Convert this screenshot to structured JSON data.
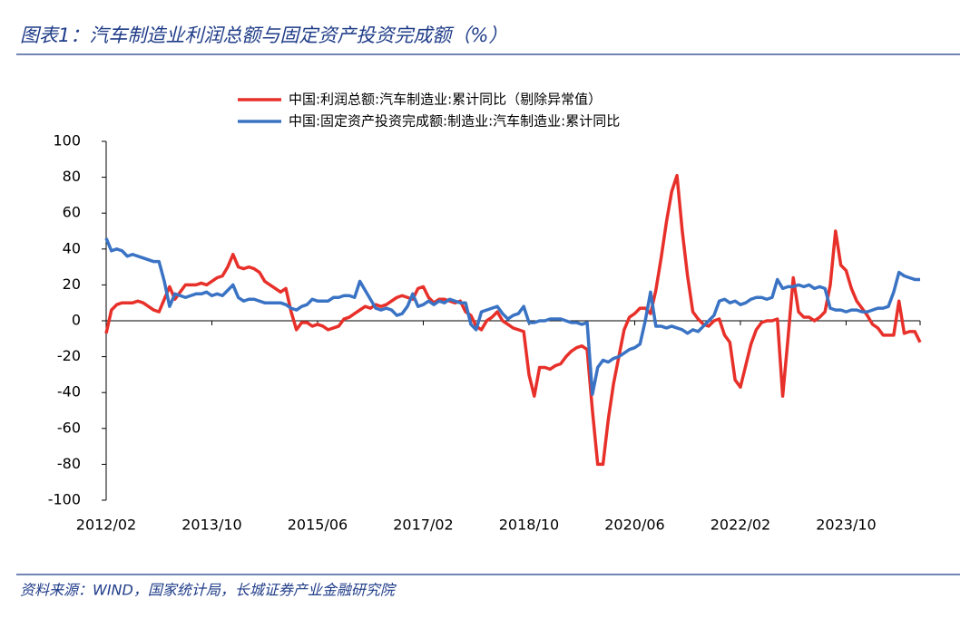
{
  "chart_data": {
    "type": "line",
    "title": "图表1：汽车制造业利润总额与固定资产投资完成额（%）",
    "source": "资料来源：WIND，国家统计局，长城证券产业金融研究院",
    "categories": [
      "2012/02",
      null,
      null,
      null,
      null,
      null,
      null,
      null,
      null,
      null,
      null,
      null,
      null,
      null,
      null,
      null,
      null,
      null,
      null,
      null,
      "2013/10",
      null,
      null,
      null,
      null,
      null,
      null,
      null,
      null,
      null,
      null,
      null,
      null,
      null,
      null,
      null,
      null,
      null,
      null,
      null,
      "2015/06",
      null,
      null,
      null,
      null,
      null,
      null,
      null,
      null,
      null,
      null,
      null,
      null,
      null,
      null,
      null,
      null,
      null,
      null,
      null,
      "2017/02",
      null,
      null,
      null,
      null,
      null,
      null,
      null,
      null,
      null,
      null,
      null,
      null,
      null,
      null,
      null,
      null,
      null,
      null,
      null,
      "2018/10",
      null,
      null,
      null,
      null,
      null,
      null,
      null,
      null,
      null,
      null,
      null,
      null,
      null,
      null,
      null,
      null,
      null,
      null,
      null,
      "2020/06",
      null,
      null,
      null,
      null,
      null,
      null,
      null,
      null,
      null,
      null,
      null,
      null,
      null,
      null,
      null,
      null,
      null,
      null,
      null,
      "2022/02",
      null,
      null,
      null,
      null,
      null,
      null,
      null,
      null,
      null,
      null,
      null,
      null,
      null,
      null,
      null,
      null,
      null,
      null,
      null,
      "2023/10",
      null,
      null,
      null,
      null,
      null,
      null,
      null,
      null,
      null,
      null,
      null,
      null,
      null,
      null
    ],
    "series": [
      {
        "name": "中国:利润总额:汽车制造业:累计同比（剔除异常值）",
        "color": "#e8302a",
        "values": [
          -7,
          6,
          9,
          10,
          10,
          10,
          11,
          10,
          8,
          6,
          5,
          12,
          19,
          12,
          16,
          20,
          20,
          20,
          21,
          20,
          22,
          24,
          25,
          30,
          37,
          30,
          29,
          30,
          29,
          27,
          22,
          20,
          18,
          16,
          18,
          5,
          -5,
          -1,
          -1,
          -3,
          -2,
          -3,
          -5,
          -4,
          -3,
          1,
          2,
          4,
          6,
          8,
          7,
          9,
          8,
          9,
          11,
          13,
          14,
          13,
          12,
          18,
          19,
          13,
          10,
          12,
          12,
          11,
          10,
          11,
          5,
          3,
          -3,
          -5,
          0,
          2,
          5,
          0,
          -2,
          -4,
          -5,
          -6,
          -30,
          -42,
          -26,
          -26,
          -27,
          -25,
          -24,
          -20,
          -17,
          -15,
          -14,
          -16,
          -50,
          -80,
          -80,
          -55,
          -35,
          -20,
          -5,
          2,
          4,
          7,
          7,
          4,
          17,
          35,
          55,
          72,
          81,
          50,
          25,
          5,
          1,
          -2,
          -3,
          0,
          1,
          -8,
          -12,
          -33,
          -37,
          -25,
          -13,
          -5,
          -1,
          0,
          0,
          1,
          -42,
          -10,
          24,
          5,
          2,
          2,
          0,
          2,
          5,
          20,
          50,
          31,
          28,
          18,
          11,
          7,
          3,
          -2,
          -4,
          -8,
          -8,
          -8,
          11,
          -7,
          -6,
          -6,
          -12
        ]
      },
      {
        "name": "中国:固定资产投资完成额:制造业:汽车制造业:累计同比",
        "color": "#3a73c4",
        "values": [
          46,
          39,
          40,
          39,
          36,
          37,
          36,
          35,
          34,
          33,
          33,
          22,
          8,
          15,
          14,
          13,
          14,
          15,
          15,
          16,
          14,
          15,
          14,
          17,
          20,
          13,
          11,
          12,
          12,
          11,
          10,
          10,
          10,
          10,
          9,
          7,
          6,
          8,
          9,
          12,
          11,
          11,
          11,
          13,
          13,
          14,
          14,
          13,
          22,
          17,
          12,
          7,
          6,
          7,
          6,
          3,
          4,
          8,
          15,
          8,
          9,
          11,
          9,
          11,
          10,
          12,
          11,
          10,
          10,
          -2,
          -5,
          5,
          6,
          7,
          8,
          4,
          1,
          3,
          4,
          8,
          -1,
          -1,
          0,
          0,
          1,
          1,
          1,
          0,
          -1,
          -1,
          -2,
          -1,
          -41,
          -26,
          -22,
          -23,
          -21,
          -20,
          -18,
          -16,
          -15,
          -13,
          0,
          16,
          -3,
          -3,
          -4,
          -3,
          -4,
          -5,
          -7,
          -5,
          -6,
          -3,
          0,
          3,
          11,
          12,
          10,
          11,
          9,
          10,
          12,
          13,
          13,
          12,
          13,
          23,
          18,
          19,
          19,
          20,
          19,
          20,
          18,
          19,
          18,
          7,
          6,
          6,
          5,
          6,
          6,
          5,
          5,
          6,
          7,
          7,
          8,
          16,
          27,
          25,
          24,
          23,
          23
        ]
      }
    ],
    "ylim": [
      -100,
      100
    ],
    "yticks": [
      100,
      80,
      60,
      40,
      20,
      0,
      -20,
      -40,
      -60,
      -80,
      -100
    ],
    "grid": false
  }
}
